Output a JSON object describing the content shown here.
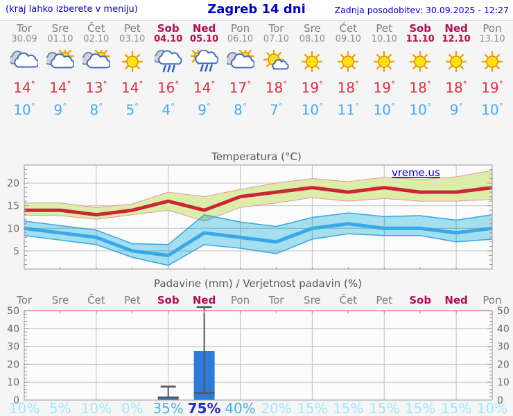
{
  "header": {
    "left_note": "(kraj lahko izberete v meniju)",
    "title": "Zagreb 14 dni",
    "updated": "Zadnja posodobitev: 30.09.2025 - 12:27"
  },
  "watermark": "vreme.us",
  "days": [
    {
      "name": "Tor",
      "date": "30.09",
      "weekend": false,
      "icon": "cloudy",
      "high": "14",
      "low": "10"
    },
    {
      "name": "Sre",
      "date": "01.10",
      "weekend": false,
      "icon": "partly-cloudy",
      "high": "14",
      "low": "9"
    },
    {
      "name": "Čet",
      "date": "02.10",
      "weekend": false,
      "icon": "partly-cloudy",
      "high": "13",
      "low": "8"
    },
    {
      "name": "Pet",
      "date": "03.10",
      "weekend": false,
      "icon": "sunny",
      "high": "14",
      "low": "5"
    },
    {
      "name": "Sob",
      "date": "04.10",
      "weekend": true,
      "icon": "rain",
      "high": "16",
      "low": "4"
    },
    {
      "name": "Ned",
      "date": "05.10",
      "weekend": true,
      "icon": "sun-rain",
      "high": "14",
      "low": "9"
    },
    {
      "name": "Pon",
      "date": "06.10",
      "weekend": false,
      "icon": "partly-cloudy",
      "high": "17",
      "low": "8"
    },
    {
      "name": "Tor",
      "date": "07.10",
      "weekend": false,
      "icon": "mostly-sunny",
      "high": "18",
      "low": "7"
    },
    {
      "name": "Sre",
      "date": "08.10",
      "weekend": false,
      "icon": "sunny",
      "high": "19",
      "low": "10"
    },
    {
      "name": "Čet",
      "date": "09.10",
      "weekend": false,
      "icon": "sunny",
      "high": "18",
      "low": "11"
    },
    {
      "name": "Pet",
      "date": "10.10",
      "weekend": false,
      "icon": "sunny",
      "high": "19",
      "low": "10"
    },
    {
      "name": "Sob",
      "date": "11.10",
      "weekend": true,
      "icon": "sunny",
      "high": "18",
      "low": "10"
    },
    {
      "name": "Ned",
      "date": "12.10",
      "weekend": true,
      "icon": "sunny",
      "high": "18",
      "low": "9"
    },
    {
      "name": "Pon",
      "date": "13.10",
      "weekend": false,
      "icon": "sunny",
      "high": "19",
      "low": "10"
    }
  ],
  "degree_symbol": "°",
  "chart_data": [
    {
      "type": "line",
      "title": "Temperatura (°C)",
      "categories": [
        "Tor 30.09",
        "Sre 01.10",
        "Čet 02.10",
        "Pet 03.10",
        "Sob 04.10",
        "Ned 05.10",
        "Pon 06.10",
        "Tor 07.10",
        "Sre 08.10",
        "Čet 09.10",
        "Pet 10.10",
        "Sob 11.10",
        "Ned 12.10",
        "Pon 13.10"
      ],
      "ylim": [
        1,
        24
      ],
      "yticks": [
        5,
        10,
        15,
        20
      ],
      "grid": true,
      "vgrid_every_days": 2,
      "series": [
        {
          "name": "max-temp",
          "color": "#cc2635",
          "values": [
            14,
            14,
            13,
            14,
            16,
            14,
            17,
            18,
            19,
            18,
            19,
            18,
            18,
            19
          ]
        },
        {
          "name": "max-temp-range-upper",
          "color": "#e89595",
          "values": [
            15.6,
            15.6,
            14.6,
            15.4,
            18,
            17,
            18.6,
            20,
            21,
            20.3,
            21.3,
            20.8,
            21.4,
            22.8
          ]
        },
        {
          "name": "max-temp-range-lower",
          "color": "#e89595",
          "values": [
            12.9,
            12.8,
            12,
            13,
            14,
            11.6,
            14.6,
            15.6,
            16.8,
            16,
            16.6,
            16,
            16,
            16.4
          ]
        },
        {
          "name": "min-temp",
          "color": "#38a8e8",
          "values": [
            10,
            9,
            8,
            5,
            4,
            9,
            8,
            7,
            10,
            11,
            10,
            10,
            9,
            10
          ]
        },
        {
          "name": "min-temp-range-upper",
          "color": "#3aa9e6",
          "values": [
            11.6,
            10.6,
            9.6,
            6.6,
            6.4,
            13,
            11.4,
            10.4,
            12.4,
            13.4,
            12.6,
            12.8,
            11.8,
            13
          ]
        },
        {
          "name": "min-temp-range-lower",
          "color": "#3aa9e6",
          "values": [
            8.4,
            7.4,
            6.4,
            3.6,
            1.8,
            6.4,
            5.6,
            4.4,
            7.6,
            8.8,
            8.4,
            8.4,
            7,
            7.6
          ]
        }
      ],
      "band_colors": {
        "max_band": "#dcedaa",
        "min_band": "#a6e3f2"
      },
      "watermark": "vreme.us"
    },
    {
      "type": "bar",
      "title": "Padavine (mm) / Verjetnost padavin (%)",
      "categories": [
        "Tor",
        "Sre",
        "Čet",
        "Pet",
        "Sob",
        "Ned",
        "Pon",
        "Tor",
        "Sre",
        "Čet",
        "Pet",
        "Sob",
        "Ned",
        "Pon"
      ],
      "weekend": [
        false,
        false,
        false,
        false,
        true,
        true,
        false,
        false,
        false,
        false,
        false,
        true,
        true,
        false
      ],
      "values_mm": [
        0,
        0,
        0,
        0,
        1.5,
        27.5,
        0,
        0,
        0,
        0,
        0,
        0,
        0,
        0
      ],
      "whisker_min": [
        null,
        null,
        null,
        null,
        1.5,
        4,
        null,
        null,
        null,
        null,
        null,
        null,
        null,
        null
      ],
      "whisker_max": [
        null,
        null,
        null,
        null,
        7.5,
        52,
        null,
        null,
        null,
        null,
        null,
        null,
        null,
        null
      ],
      "probabilities_pct": [
        10,
        5,
        10,
        0,
        35,
        75,
        40,
        20,
        15,
        15,
        15,
        15,
        15,
        10
      ],
      "ylim": [
        0,
        50
      ],
      "yticks": [
        0,
        10,
        20,
        30,
        40,
        50
      ],
      "bar_color": "#2a7cd8",
      "whisker_color": "#555555",
      "prob_colors": {
        "low": "#9fe9fc",
        "mid": "#41aef0",
        "high": "#2031bd"
      }
    }
  ],
  "colors": {
    "header_blue": "#0000cc",
    "weekend_red": "#b30d4e",
    "high_temp_red": "#e02c3e",
    "low_temp_blue": "#42abf0",
    "grid": "#c3c3c3",
    "axis": "#999999",
    "axis_text": "#666666",
    "title_text": "#555555",
    "plot_bg": "#fbfbfb",
    "pink_axis": "#e8808a"
  }
}
